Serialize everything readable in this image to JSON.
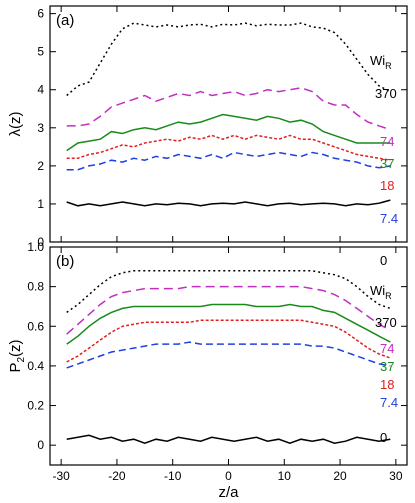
{
  "chart_data": [
    {
      "type": "line",
      "panel_label": "(a)",
      "ylabel": "λ(z)",
      "ylim": [
        0,
        6.2
      ],
      "yticks": [
        0,
        1,
        2,
        3,
        4,
        5,
        6
      ],
      "ytick_labels": [
        "0",
        "1",
        "2",
        "3",
        "4",
        "5",
        "6"
      ],
      "xlim": [
        -32,
        32
      ],
      "xticks": [
        -30,
        -20,
        -10,
        0,
        10,
        20,
        30
      ],
      "legend_title": "Wi_R",
      "legend_title_main": "Wi",
      "legend_title_sub": "R",
      "x": [
        -29,
        -27,
        -25,
        -23,
        -21,
        -19,
        -17,
        -15,
        -13,
        -11,
        -9,
        -7,
        -5,
        -3,
        -1,
        1,
        3,
        5,
        7,
        9,
        11,
        13,
        15,
        17,
        19,
        21,
        23,
        25,
        27,
        29
      ],
      "series": [
        {
          "name": "370",
          "color": "#000000",
          "dash": "2,3",
          "values": [
            3.85,
            4.1,
            4.2,
            4.7,
            5.2,
            5.6,
            5.75,
            5.7,
            5.65,
            5.7,
            5.65,
            5.7,
            5.72,
            5.65,
            5.72,
            5.7,
            5.75,
            5.68,
            5.72,
            5.7,
            5.7,
            5.75,
            5.65,
            5.62,
            5.5,
            5.2,
            4.8,
            4.4,
            4.1,
            3.95
          ]
        },
        {
          "name": "74",
          "color": "#c030c0",
          "dash": "9,5",
          "values": [
            3.05,
            3.05,
            3.1,
            3.3,
            3.55,
            3.65,
            3.75,
            3.85,
            3.7,
            3.8,
            3.9,
            3.85,
            3.95,
            3.85,
            3.9,
            3.95,
            3.85,
            3.9,
            4.0,
            3.95,
            4.0,
            4.05,
            3.95,
            3.7,
            3.6,
            3.6,
            3.35,
            3.15,
            3.05,
            2.95
          ]
        },
        {
          "name": "37",
          "color": "#1a8a1a",
          "dash": "",
          "values": [
            2.4,
            2.6,
            2.65,
            2.7,
            2.9,
            2.85,
            2.95,
            3.0,
            2.95,
            3.05,
            3.15,
            3.1,
            3.15,
            3.25,
            3.35,
            3.3,
            3.25,
            3.2,
            3.3,
            3.25,
            3.15,
            3.2,
            3.1,
            2.9,
            2.8,
            2.7,
            2.6,
            2.6,
            2.6,
            2.6
          ]
        },
        {
          "name": "18",
          "color": "#e02020",
          "dash": "3,2",
          "values": [
            2.2,
            2.2,
            2.3,
            2.35,
            2.45,
            2.55,
            2.5,
            2.6,
            2.65,
            2.7,
            2.65,
            2.75,
            2.7,
            2.8,
            2.7,
            2.8,
            2.7,
            2.8,
            2.75,
            2.7,
            2.8,
            2.7,
            2.7,
            2.6,
            2.5,
            2.4,
            2.3,
            2.25,
            2.2,
            2.15
          ]
        },
        {
          "name": "7.4",
          "color": "#2040e0",
          "dash": "7,4",
          "values": [
            1.9,
            1.9,
            2.0,
            2.05,
            2.15,
            2.1,
            2.2,
            2.15,
            2.25,
            2.2,
            2.3,
            2.25,
            2.2,
            2.3,
            2.2,
            2.35,
            2.3,
            2.25,
            2.3,
            2.35,
            2.3,
            2.25,
            2.35,
            2.3,
            2.2,
            2.15,
            2.1,
            2.0,
            1.95,
            2.0
          ]
        },
        {
          "name": "0",
          "color": "#000000",
          "dash": "",
          "values": [
            1.05,
            0.95,
            1.0,
            0.95,
            1.0,
            1.05,
            1.0,
            0.95,
            1.0,
            0.98,
            1.02,
            1.0,
            0.95,
            1.0,
            1.02,
            1.0,
            1.05,
            1.0,
            0.95,
            1.0,
            1.02,
            0.98,
            1.0,
            1.02,
            1.0,
            0.95,
            1.0,
            0.98,
            1.02,
            1.1
          ]
        }
      ]
    },
    {
      "type": "line",
      "panel_label": "(b)",
      "ylabel": "P_2(z)",
      "ylabel_main": "P",
      "ylabel_sub": "2",
      "ylabel_tail": "(z)",
      "xlabel": "z/a",
      "ylim": [
        -0.1,
        1.0
      ],
      "yticks": [
        0,
        0.2,
        0.4,
        0.6,
        0.8,
        1.0
      ],
      "ytick_labels": [
        "0",
        "0.2",
        "0.4",
        "0.6",
        "0.8",
        "1.0"
      ],
      "xlim": [
        -32,
        32
      ],
      "xticks": [
        -30,
        -20,
        -10,
        0,
        10,
        20,
        30
      ],
      "xtick_labels": [
        "-30",
        "-20",
        "-10",
        "0",
        "10",
        "20",
        "30"
      ],
      "legend_title": "Wi_R",
      "legend_title_main": "Wi",
      "legend_title_sub": "R",
      "x": [
        -29,
        -27,
        -25,
        -23,
        -21,
        -19,
        -17,
        -15,
        -13,
        -11,
        -9,
        -7,
        -5,
        -3,
        -1,
        1,
        3,
        5,
        7,
        9,
        11,
        13,
        15,
        17,
        19,
        21,
        23,
        25,
        27,
        29
      ],
      "series": [
        {
          "name": "370",
          "color": "#000000",
          "dash": "2,3",
          "values": [
            0.67,
            0.71,
            0.76,
            0.81,
            0.85,
            0.87,
            0.88,
            0.88,
            0.88,
            0.88,
            0.88,
            0.88,
            0.88,
            0.88,
            0.88,
            0.88,
            0.88,
            0.88,
            0.88,
            0.88,
            0.88,
            0.88,
            0.88,
            0.87,
            0.86,
            0.84,
            0.8,
            0.75,
            0.71,
            0.69
          ]
        },
        {
          "name": "74",
          "color": "#c030c0",
          "dash": "9,5",
          "values": [
            0.56,
            0.61,
            0.66,
            0.71,
            0.75,
            0.77,
            0.78,
            0.79,
            0.79,
            0.79,
            0.79,
            0.8,
            0.8,
            0.8,
            0.8,
            0.8,
            0.8,
            0.8,
            0.8,
            0.8,
            0.8,
            0.8,
            0.79,
            0.78,
            0.76,
            0.73,
            0.69,
            0.65,
            0.61,
            0.58
          ]
        },
        {
          "name": "37",
          "color": "#1a8a1a",
          "dash": "",
          "values": [
            0.51,
            0.55,
            0.6,
            0.64,
            0.67,
            0.69,
            0.7,
            0.7,
            0.7,
            0.7,
            0.7,
            0.7,
            0.7,
            0.71,
            0.71,
            0.71,
            0.71,
            0.7,
            0.7,
            0.7,
            0.71,
            0.7,
            0.7,
            0.68,
            0.67,
            0.64,
            0.61,
            0.58,
            0.55,
            0.52
          ]
        },
        {
          "name": "18",
          "color": "#e02020",
          "dash": "3,2",
          "values": [
            0.42,
            0.45,
            0.49,
            0.53,
            0.57,
            0.6,
            0.61,
            0.62,
            0.62,
            0.62,
            0.62,
            0.62,
            0.63,
            0.63,
            0.63,
            0.63,
            0.63,
            0.63,
            0.63,
            0.63,
            0.63,
            0.63,
            0.62,
            0.61,
            0.6,
            0.57,
            0.53,
            0.49,
            0.46,
            0.44
          ]
        },
        {
          "name": "7.4",
          "color": "#2040e0",
          "dash": "7,4",
          "values": [
            0.39,
            0.41,
            0.43,
            0.45,
            0.47,
            0.48,
            0.49,
            0.5,
            0.51,
            0.51,
            0.51,
            0.52,
            0.51,
            0.51,
            0.51,
            0.51,
            0.51,
            0.51,
            0.51,
            0.51,
            0.51,
            0.51,
            0.5,
            0.5,
            0.49,
            0.47,
            0.45,
            0.43,
            0.41,
            0.4
          ]
        },
        {
          "name": "0",
          "color": "#000000",
          "dash": "",
          "values": [
            0.03,
            0.04,
            0.05,
            0.03,
            0.04,
            0.02,
            0.03,
            0.01,
            0.03,
            0.02,
            0.04,
            0.03,
            0.02,
            0.04,
            0.03,
            0.02,
            0.03,
            0.04,
            0.02,
            0.03,
            0.01,
            0.03,
            0.02,
            0.03,
            0.01,
            0.02,
            0.04,
            0.03,
            0.02,
            0.03
          ]
        }
      ]
    }
  ]
}
